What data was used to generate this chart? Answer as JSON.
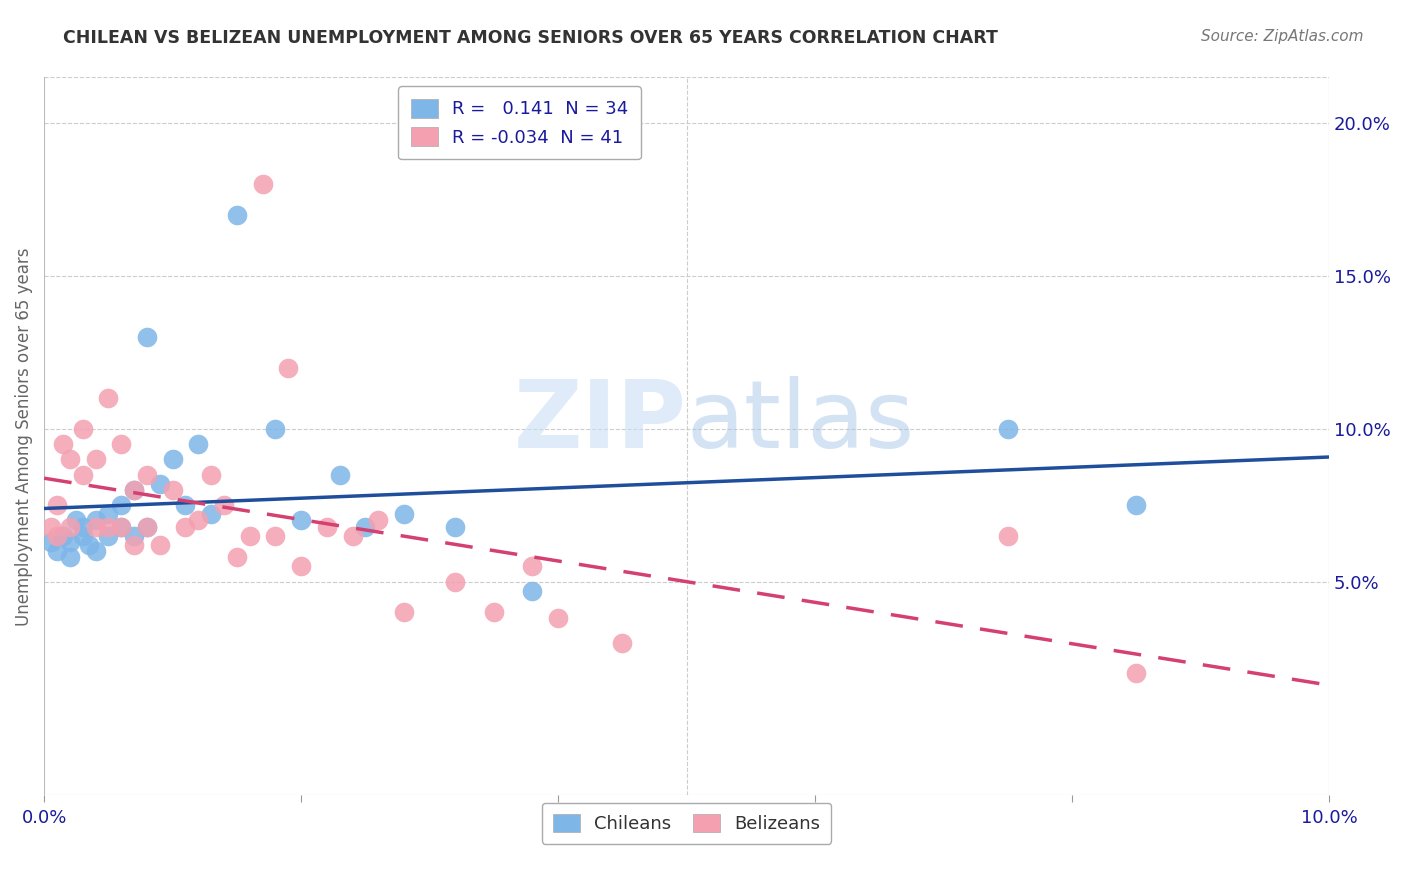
{
  "title": "CHILEAN VS BELIZEAN UNEMPLOYMENT AMONG SENIORS OVER 65 YEARS CORRELATION CHART",
  "source": "Source: ZipAtlas.com",
  "ylabel": "Unemployment Among Seniors over 65 years",
  "xlim": [
    0.0,
    0.1
  ],
  "ylim": [
    -0.02,
    0.215
  ],
  "yticks": [
    0.05,
    0.1,
    0.15,
    0.2
  ],
  "ytick_labels": [
    "5.0%",
    "10.0%",
    "15.0%",
    "20.0%"
  ],
  "xticks": [
    0.0,
    0.02,
    0.04,
    0.06,
    0.08,
    0.1
  ],
  "xtick_labels": [
    "0.0%",
    "",
    "",
    "",
    "",
    "10.0%"
  ],
  "chilean_R": 0.141,
  "chilean_N": 34,
  "belizean_R": -0.034,
  "belizean_N": 41,
  "chilean_color": "#7EB6E8",
  "belizean_color": "#F4A0B0",
  "chilean_line_color": "#1F4E9C",
  "belizean_line_color": "#D44070",
  "background_color": "#FFFFFF",
  "grid_color": "#CCCCCC",
  "watermark_zip": "ZIP",
  "watermark_atlas": "atlas",
  "chileans_x": [
    0.0005,
    0.001,
    0.0015,
    0.002,
    0.002,
    0.0025,
    0.003,
    0.003,
    0.0035,
    0.004,
    0.004,
    0.005,
    0.005,
    0.006,
    0.006,
    0.007,
    0.007,
    0.008,
    0.008,
    0.009,
    0.01,
    0.011,
    0.012,
    0.013,
    0.015,
    0.018,
    0.02,
    0.023,
    0.025,
    0.028,
    0.032,
    0.038,
    0.075,
    0.085
  ],
  "chileans_y": [
    0.063,
    0.06,
    0.065,
    0.063,
    0.058,
    0.07,
    0.068,
    0.065,
    0.062,
    0.07,
    0.06,
    0.072,
    0.065,
    0.068,
    0.075,
    0.08,
    0.065,
    0.13,
    0.068,
    0.082,
    0.09,
    0.075,
    0.095,
    0.072,
    0.17,
    0.1,
    0.07,
    0.085,
    0.068,
    0.072,
    0.068,
    0.047,
    0.1,
    0.075
  ],
  "belizeans_x": [
    0.0005,
    0.001,
    0.001,
    0.0015,
    0.002,
    0.002,
    0.003,
    0.003,
    0.004,
    0.004,
    0.005,
    0.005,
    0.006,
    0.006,
    0.007,
    0.007,
    0.008,
    0.008,
    0.009,
    0.01,
    0.011,
    0.012,
    0.013,
    0.014,
    0.015,
    0.016,
    0.017,
    0.018,
    0.019,
    0.02,
    0.022,
    0.024,
    0.026,
    0.028,
    0.032,
    0.035,
    0.038,
    0.04,
    0.045,
    0.075,
    0.085
  ],
  "belizeans_y": [
    0.068,
    0.065,
    0.075,
    0.095,
    0.09,
    0.068,
    0.1,
    0.085,
    0.09,
    0.068,
    0.11,
    0.068,
    0.095,
    0.068,
    0.08,
    0.062,
    0.085,
    0.068,
    0.062,
    0.08,
    0.068,
    0.07,
    0.085,
    0.075,
    0.058,
    0.065,
    0.18,
    0.065,
    0.12,
    0.055,
    0.068,
    0.065,
    0.07,
    0.04,
    0.05,
    0.04,
    0.055,
    0.038,
    0.03,
    0.065,
    0.02
  ]
}
